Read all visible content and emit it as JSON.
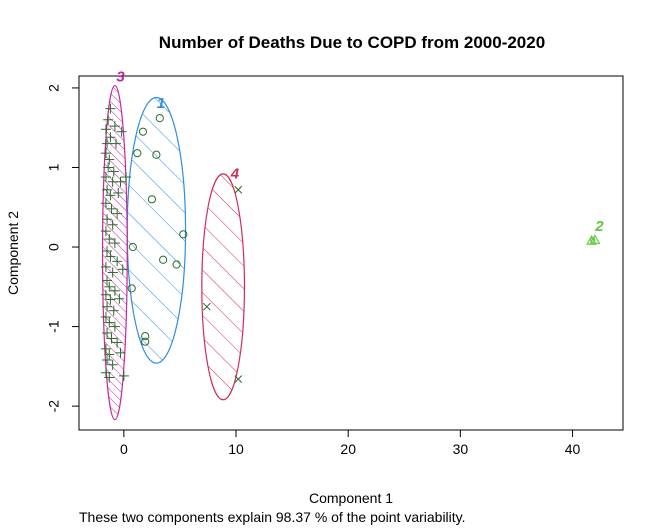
{
  "chart_data": {
    "type": "scatter",
    "title": "Number of Deaths Due to COPD from 2000-2020",
    "xlabel": "Component 1",
    "ylabel": "Component 2",
    "note": "These two components explain 98.37 % of the point variability.",
    "xlim": [
      -4,
      44.5
    ],
    "ylim": [
      -2.3,
      2.15
    ],
    "x_ticks": [
      0,
      10,
      20,
      30,
      40
    ],
    "y_ticks": [
      -2,
      -1,
      0,
      1,
      2
    ],
    "grid": false,
    "clusters": [
      {
        "label": "1",
        "color": "#2e8ee0",
        "marker": "circle",
        "ellipse": {
          "cx": 2.9,
          "cy": 0.21,
          "rx": 2.6,
          "ry": 1.67
        },
        "label_pos": [
          3.3,
          1.75
        ],
        "points": [
          [
            3.2,
            1.62
          ],
          [
            1.7,
            1.45
          ],
          [
            2.9,
            1.16
          ],
          [
            1.2,
            1.18
          ],
          [
            2.5,
            0.6
          ],
          [
            5.3,
            0.16
          ],
          [
            0.8,
            0.0
          ],
          [
            3.5,
            -0.16
          ],
          [
            4.7,
            -0.22
          ],
          [
            0.7,
            -0.52
          ],
          [
            1.9,
            -1.12
          ],
          [
            1.9,
            -1.19
          ]
        ]
      },
      {
        "label": "2",
        "color": "#5fc83a",
        "marker": "triangle",
        "ellipse": {
          "cx": 41.8,
          "cy": 0.09,
          "rx": 0.15,
          "ry": 0.03
        },
        "label_pos": [
          42.4,
          0.2
        ],
        "points": [
          [
            41.7,
            0.08
          ],
          [
            42.0,
            0.09
          ]
        ]
      },
      {
        "label": "3",
        "color": "#c4269e",
        "marker": "plus",
        "ellipse": {
          "cx": -0.8,
          "cy": -0.07,
          "rx": 1.1,
          "ry": 2.1
        },
        "label_pos": [
          -0.3,
          2.08
        ],
        "points": [
          [
            -1.2,
            1.74
          ],
          [
            -1.4,
            1.6
          ],
          [
            -0.8,
            1.52
          ],
          [
            -1.6,
            1.48
          ],
          [
            -0.2,
            1.45
          ],
          [
            -1.2,
            1.38
          ],
          [
            -1.5,
            1.3
          ],
          [
            -0.7,
            1.3
          ],
          [
            -1.6,
            1.18
          ],
          [
            -1.3,
            1.1
          ],
          [
            -1.4,
            1.0
          ],
          [
            -0.9,
            0.95
          ],
          [
            -1.6,
            0.88
          ],
          [
            -1.0,
            0.82
          ],
          [
            -0.3,
            0.82
          ],
          [
            0.2,
            0.88
          ],
          [
            -1.5,
            0.72
          ],
          [
            -1.2,
            0.65
          ],
          [
            -0.5,
            0.68
          ],
          [
            -1.6,
            0.55
          ],
          [
            -1.1,
            0.48
          ],
          [
            -0.6,
            0.42
          ],
          [
            -1.5,
            0.35
          ],
          [
            -1.0,
            0.28
          ],
          [
            -1.6,
            0.2
          ],
          [
            -1.3,
            0.1
          ],
          [
            -0.8,
            0.05
          ],
          [
            -1.5,
            -0.05
          ],
          [
            -1.2,
            -0.12
          ],
          [
            -0.6,
            -0.18
          ],
          [
            -1.6,
            -0.25
          ],
          [
            -1.0,
            -0.32
          ],
          [
            -0.1,
            -0.28
          ],
          [
            -1.5,
            -0.42
          ],
          [
            -1.3,
            -0.5
          ],
          [
            -0.8,
            -0.55
          ],
          [
            -1.6,
            -0.6
          ],
          [
            -1.2,
            -0.66
          ],
          [
            -0.4,
            -0.65
          ],
          [
            -1.5,
            -0.75
          ],
          [
            -0.9,
            -0.8
          ],
          [
            -1.6,
            -0.88
          ],
          [
            -1.3,
            -0.95
          ],
          [
            -0.8,
            -1.0
          ],
          [
            -1.5,
            -1.08
          ],
          [
            -1.1,
            -1.15
          ],
          [
            -0.6,
            -1.2
          ],
          [
            -1.6,
            -1.28
          ],
          [
            -1.3,
            -1.35
          ],
          [
            -0.3,
            -1.33
          ],
          [
            -1.5,
            -1.42
          ],
          [
            -1.0,
            -1.48
          ],
          [
            -1.6,
            -1.58
          ],
          [
            -1.3,
            -1.64
          ],
          [
            0.0,
            -1.62
          ]
        ]
      },
      {
        "label": "4",
        "color": "#d02d55",
        "marker": "x",
        "ellipse": {
          "cx": 8.85,
          "cy": -0.5,
          "rx": 1.9,
          "ry": 1.42
        },
        "label_pos": [
          9.9,
          0.86
        ],
        "points": [
          [
            10.2,
            0.72
          ],
          [
            7.4,
            -0.75
          ],
          [
            10.2,
            -1.66
          ]
        ]
      }
    ]
  },
  "colors": {
    "points": "#2b6b2b",
    "axis": "#000000"
  }
}
